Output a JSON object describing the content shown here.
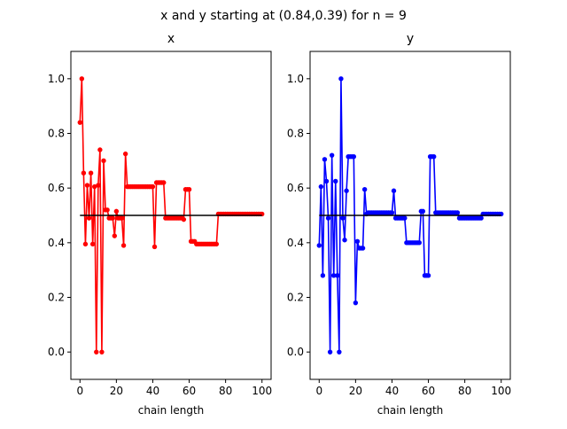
{
  "suptitle": "x and y starting at (0.84,0.39) for n = 9",
  "chart_data": [
    {
      "type": "line",
      "title": "x",
      "xlabel": "chain length",
      "ylabel": "",
      "xlim": [
        -5,
        105
      ],
      "ylim": [
        -0.1,
        1.1
      ],
      "xticks": [
        0,
        20,
        40,
        60,
        80,
        100
      ],
      "yticks": [
        0.0,
        0.2,
        0.4,
        0.6,
        0.8,
        1.0
      ],
      "xtick_labels": [
        "0",
        "20",
        "40",
        "60",
        "80",
        "100"
      ],
      "ytick_labels": [
        "0.0",
        "0.2",
        "0.4",
        "0.6",
        "0.8",
        "1.0"
      ],
      "grid": false,
      "reference_line": 0.5,
      "reference_color": "#000000",
      "series": [
        {
          "color": "#ff0000",
          "x": [
            0,
            1,
            2,
            3,
            4,
            5,
            6,
            7,
            8,
            9,
            10,
            11,
            12,
            13,
            14,
            15,
            16,
            17,
            18,
            19,
            20,
            21,
            22,
            23,
            24,
            25,
            26,
            27,
            28,
            29,
            30,
            31,
            32,
            33,
            34,
            35,
            36,
            37,
            38,
            39,
            40,
            41,
            42,
            43,
            44,
            45,
            46,
            47,
            48,
            49,
            50,
            51,
            52,
            53,
            54,
            55,
            56,
            57,
            58,
            59,
            60,
            61,
            62,
            63,
            64,
            65,
            66,
            67,
            68,
            69,
            70,
            71,
            72,
            73,
            74,
            75,
            76,
            77,
            78,
            79,
            80,
            81,
            82,
            83,
            84,
            85,
            86,
            87,
            88,
            89,
            90,
            91,
            92,
            93,
            94,
            95,
            96,
            97,
            98,
            99,
            100
          ],
          "y": [
            0.84,
            1.0,
            0.655,
            0.395,
            0.61,
            0.49,
            0.655,
            0.395,
            0.605,
            0.0,
            0.61,
            0.74,
            0.0,
            0.7,
            0.52,
            0.52,
            0.49,
            0.49,
            0.49,
            0.425,
            0.515,
            0.49,
            0.49,
            0.49,
            0.39,
            0.725,
            0.605,
            0.605,
            0.605,
            0.605,
            0.605,
            0.605,
            0.605,
            0.605,
            0.605,
            0.605,
            0.605,
            0.605,
            0.605,
            0.605,
            0.605,
            0.385,
            0.62,
            0.62,
            0.62,
            0.62,
            0.62,
            0.49,
            0.49,
            0.49,
            0.49,
            0.49,
            0.49,
            0.49,
            0.49,
            0.49,
            0.49,
            0.485,
            0.595,
            0.595,
            0.595,
            0.405,
            0.405,
            0.405,
            0.395,
            0.395,
            0.395,
            0.395,
            0.395,
            0.395,
            0.395,
            0.395,
            0.395,
            0.395,
            0.395,
            0.395,
            0.505,
            0.505,
            0.505,
            0.505,
            0.505,
            0.505,
            0.505,
            0.505,
            0.505,
            0.505,
            0.505,
            0.505,
            0.505,
            0.505,
            0.505,
            0.505,
            0.505,
            0.505,
            0.505,
            0.505,
            0.505,
            0.505,
            0.505,
            0.505,
            0.505
          ]
        }
      ]
    },
    {
      "type": "line",
      "title": "y",
      "xlabel": "chain length",
      "ylabel": "",
      "xlim": [
        -5,
        105
      ],
      "ylim": [
        -0.1,
        1.1
      ],
      "xticks": [
        0,
        20,
        40,
        60,
        80,
        100
      ],
      "yticks": [
        0.0,
        0.2,
        0.4,
        0.6,
        0.8,
        1.0
      ],
      "xtick_labels": [
        "0",
        "20",
        "40",
        "60",
        "80",
        "100"
      ],
      "ytick_labels": [
        "0.0",
        "0.2",
        "0.4",
        "0.6",
        "0.8",
        "1.0"
      ],
      "grid": false,
      "reference_line": 0.5,
      "reference_color": "#000000",
      "series": [
        {
          "color": "#0000ff",
          "x": [
            0,
            1,
            2,
            3,
            4,
            5,
            6,
            7,
            8,
            9,
            10,
            11,
            12,
            13,
            14,
            15,
            16,
            17,
            18,
            19,
            20,
            21,
            22,
            23,
            24,
            25,
            26,
            27,
            28,
            29,
            30,
            31,
            32,
            33,
            34,
            35,
            36,
            37,
            38,
            39,
            40,
            41,
            42,
            43,
            44,
            45,
            46,
            47,
            48,
            49,
            50,
            51,
            52,
            53,
            54,
            55,
            56,
            57,
            58,
            59,
            60,
            61,
            62,
            63,
            64,
            65,
            66,
            67,
            68,
            69,
            70,
            71,
            72,
            73,
            74,
            75,
            76,
            77,
            78,
            79,
            80,
            81,
            82,
            83,
            84,
            85,
            86,
            87,
            88,
            89,
            90,
            91,
            92,
            93,
            94,
            95,
            96,
            97,
            98,
            99,
            100
          ],
          "y": [
            0.39,
            0.605,
            0.28,
            0.705,
            0.625,
            0.49,
            0.0,
            0.72,
            0.28,
            0.625,
            0.28,
            0.0,
            1.0,
            0.49,
            0.41,
            0.59,
            0.715,
            0.715,
            0.715,
            0.715,
            0.18,
            0.405,
            0.38,
            0.38,
            0.38,
            0.595,
            0.505,
            0.51,
            0.51,
            0.51,
            0.51,
            0.51,
            0.51,
            0.51,
            0.51,
            0.51,
            0.51,
            0.51,
            0.51,
            0.51,
            0.51,
            0.59,
            0.49,
            0.49,
            0.49,
            0.49,
            0.49,
            0.49,
            0.4,
            0.4,
            0.4,
            0.4,
            0.4,
            0.4,
            0.4,
            0.4,
            0.515,
            0.515,
            0.28,
            0.28,
            0.28,
            0.715,
            0.715,
            0.715,
            0.51,
            0.51,
            0.51,
            0.51,
            0.51,
            0.51,
            0.51,
            0.51,
            0.51,
            0.51,
            0.51,
            0.51,
            0.51,
            0.49,
            0.49,
            0.49,
            0.49,
            0.49,
            0.49,
            0.49,
            0.49,
            0.49,
            0.49,
            0.49,
            0.49,
            0.49,
            0.505,
            0.505,
            0.505,
            0.505,
            0.505,
            0.505,
            0.505,
            0.505,
            0.505,
            0.505,
            0.505
          ]
        }
      ]
    }
  ]
}
